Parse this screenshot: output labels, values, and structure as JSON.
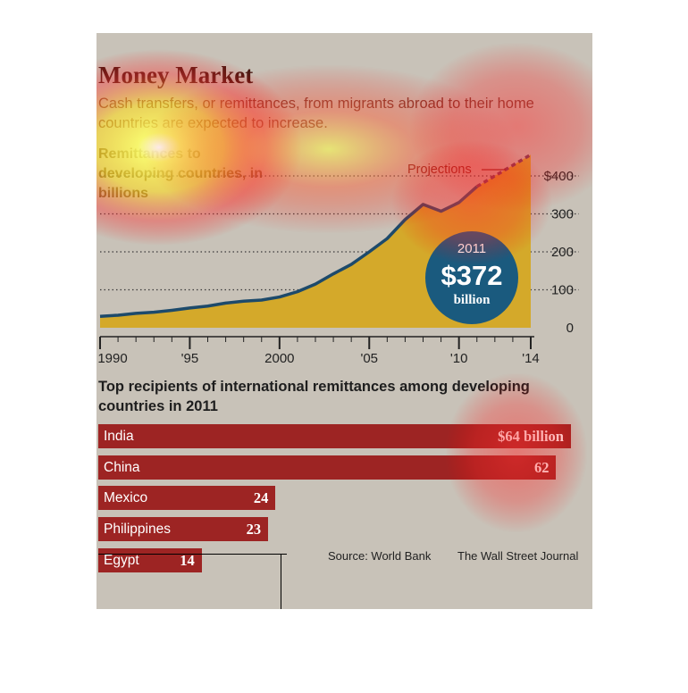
{
  "header": {
    "title": "Money Market",
    "subtitle": "Cash transfers, or remittances, from migrants abroad to their home countries are expected to increase.",
    "chart_label": "Remittances to developing countries, in billions"
  },
  "annotations": {
    "projections": "Projections",
    "callout_year": "2011",
    "callout_value": "$372",
    "callout_unit": "billion"
  },
  "bar_section": {
    "title": "Top recipients of international remittances among developing countries in 2011"
  },
  "footer": {
    "source": "Source: World Bank",
    "credit": "The Wall Street Journal"
  },
  "colors": {
    "background": "#c8c2b8",
    "area_fill": "#d4a92a",
    "line": "#1d4a6b",
    "callout": "#1a5a7e",
    "bar": "#9d2423",
    "projection_label": "#7a1f1a"
  },
  "chart_data": [
    {
      "type": "area",
      "x": [
        1990,
        1991,
        1992,
        1993,
        1994,
        1995,
        1996,
        1997,
        1998,
        1999,
        2000,
        2001,
        2002,
        2003,
        2004,
        2005,
        2006,
        2007,
        2008,
        2009,
        2010,
        2011
      ],
      "values": [
        30,
        33,
        38,
        41,
        46,
        52,
        57,
        65,
        70,
        73,
        81,
        95,
        115,
        142,
        167,
        200,
        235,
        285,
        325,
        307,
        330,
        372
      ],
      "projection_x": [
        2011,
        2012,
        2013,
        2014
      ],
      "projection_values": [
        372,
        400,
        428,
        456
      ],
      "xticks": [
        "1990",
        "'95",
        "2000",
        "'05",
        "'10",
        "'14"
      ],
      "xtick_values": [
        1990,
        1995,
        2000,
        2005,
        2010,
        2014
      ],
      "yticks": [
        "0",
        "100",
        "200",
        "300",
        "$400"
      ],
      "ytick_values": [
        0,
        100,
        200,
        300,
        400
      ],
      "xlim": [
        1990,
        2014
      ],
      "ylim": [
        0,
        400
      ],
      "grid": true,
      "title": "Remittances to developing countries, in billions"
    },
    {
      "type": "bar",
      "orientation": "horizontal",
      "title": "Top recipients of international remittances among developing countries in 2011",
      "categories": [
        "India",
        "China",
        "Mexico",
        "Philippines",
        "Egypt"
      ],
      "values": [
        64,
        62,
        24,
        23,
        14
      ],
      "value_labels": [
        "$64 billion",
        "62",
        "24",
        "23",
        "14"
      ],
      "unit": "billion"
    }
  ]
}
